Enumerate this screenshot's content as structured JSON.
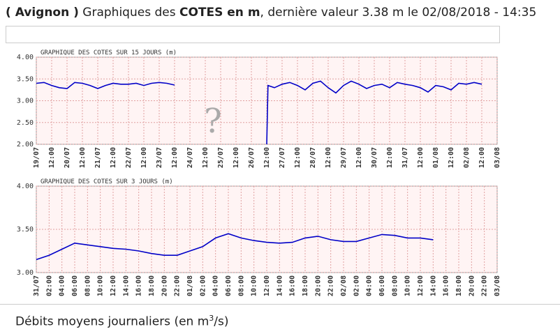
{
  "header": {
    "location": "( Avignon )",
    "text1": "Graphiques des",
    "measure": "COTES en m",
    "text2": ", dernière valeur 3.38 m le 02/08/2018 - 14:35"
  },
  "footer": {
    "text": "Débits moyens journaliers (en m",
    "sup": "3",
    "end": "/s)"
  },
  "chart_data": [
    {
      "type": "line",
      "title": "GRAPHIQUE DES COTES SUR 15 JOURS (m)",
      "annotation": "?",
      "grid": true,
      "xlim": [
        0,
        360
      ],
      "xticks": [
        {
          "value": 0,
          "label": "19/07"
        },
        {
          "value": 12,
          "label": "12:00"
        },
        {
          "value": 24,
          "label": "20/07"
        },
        {
          "value": 36,
          "label": "12:00"
        },
        {
          "value": 48,
          "label": "21/07"
        },
        {
          "value": 60,
          "label": "12:00"
        },
        {
          "value": 72,
          "label": "22/07"
        },
        {
          "value": 84,
          "label": "12:00"
        },
        {
          "value": 96,
          "label": "23/07"
        },
        {
          "value": 108,
          "label": "12:00"
        },
        {
          "value": 120,
          "label": "24/07"
        },
        {
          "value": 132,
          "label": "12:00"
        },
        {
          "value": 144,
          "label": "25/07"
        },
        {
          "value": 156,
          "label": "12:00"
        },
        {
          "value": 168,
          "label": "26/07"
        },
        {
          "value": 180,
          "label": "12:00"
        },
        {
          "value": 192,
          "label": "27/07"
        },
        {
          "value": 204,
          "label": "12:00"
        },
        {
          "value": 216,
          "label": "28/07"
        },
        {
          "value": 228,
          "label": "12:00"
        },
        {
          "value": 240,
          "label": "29/07"
        },
        {
          "value": 252,
          "label": "12:00"
        },
        {
          "value": 264,
          "label": "30/07"
        },
        {
          "value": 276,
          "label": "12:00"
        },
        {
          "value": 288,
          "label": "31/07"
        },
        {
          "value": 300,
          "label": "12:00"
        },
        {
          "value": 312,
          "label": "01/08"
        },
        {
          "value": 324,
          "label": "12:00"
        },
        {
          "value": 336,
          "label": "02/08"
        },
        {
          "value": 348,
          "label": "12:00"
        },
        {
          "value": 360,
          "label": "03/08"
        }
      ],
      "ylim": [
        2,
        4
      ],
      "yticks": [
        {
          "value": 2,
          "label": "2.00"
        },
        {
          "value": 2.5,
          "label": "2.50"
        },
        {
          "value": 3,
          "label": "3.00"
        },
        {
          "value": 3.5,
          "label": "3.50"
        },
        {
          "value": 4,
          "label": "4.00"
        }
      ],
      "series": [
        {
          "color": "#0000c8",
          "x": [
            0,
            6,
            12,
            18,
            24,
            30,
            36,
            42,
            48,
            54,
            60,
            66,
            72,
            78,
            84,
            90,
            96,
            102,
            108,
            144,
            180,
            181,
            186,
            192,
            198,
            204,
            210,
            216,
            222,
            228,
            234,
            240,
            246,
            252,
            258,
            264,
            270,
            276,
            282,
            288,
            294,
            300,
            306,
            312,
            318,
            324,
            330,
            336,
            342,
            348
          ],
          "values": [
            3.4,
            3.42,
            3.35,
            3.3,
            3.28,
            3.42,
            3.4,
            3.35,
            3.28,
            3.35,
            3.4,
            3.38,
            3.38,
            3.4,
            3.35,
            3.4,
            3.42,
            3.4,
            3.36,
            null,
            2.0,
            3.35,
            3.3,
            3.38,
            3.42,
            3.35,
            3.25,
            3.4,
            3.45,
            3.3,
            3.18,
            3.35,
            3.45,
            3.38,
            3.28,
            3.35,
            3.38,
            3.3,
            3.42,
            3.38,
            3.35,
            3.3,
            3.2,
            3.35,
            3.32,
            3.25,
            3.4,
            3.38,
            3.42,
            3.38
          ]
        }
      ]
    },
    {
      "type": "line",
      "title": "GRAPHIQUE DES COTES SUR 3 JOURS (m)",
      "grid": true,
      "xlim": [
        0,
        72
      ],
      "xticks": [
        {
          "value": 0,
          "label": "31/07"
        },
        {
          "value": 2,
          "label": "02:00"
        },
        {
          "value": 4,
          "label": "04:00"
        },
        {
          "value": 6,
          "label": "06:00"
        },
        {
          "value": 8,
          "label": "08:00"
        },
        {
          "value": 10,
          "label": "10:00"
        },
        {
          "value": 12,
          "label": "12:00"
        },
        {
          "value": 14,
          "label": "14:00"
        },
        {
          "value": 16,
          "label": "16:00"
        },
        {
          "value": 18,
          "label": "18:00"
        },
        {
          "value": 20,
          "label": "20:00"
        },
        {
          "value": 22,
          "label": "22:00"
        },
        {
          "value": 24,
          "label": "01/08"
        },
        {
          "value": 26,
          "label": "02:00"
        },
        {
          "value": 28,
          "label": "04:00"
        },
        {
          "value": 30,
          "label": "06:00"
        },
        {
          "value": 32,
          "label": "08:00"
        },
        {
          "value": 34,
          "label": "10:00"
        },
        {
          "value": 36,
          "label": "12:00"
        },
        {
          "value": 38,
          "label": "14:00"
        },
        {
          "value": 40,
          "label": "16:00"
        },
        {
          "value": 42,
          "label": "18:00"
        },
        {
          "value": 44,
          "label": "20:00"
        },
        {
          "value": 46,
          "label": "22:00"
        },
        {
          "value": 48,
          "label": "02/08"
        },
        {
          "value": 50,
          "label": "02:00"
        },
        {
          "value": 52,
          "label": "04:00"
        },
        {
          "value": 54,
          "label": "06:00"
        },
        {
          "value": 56,
          "label": "08:00"
        },
        {
          "value": 58,
          "label": "10:00"
        },
        {
          "value": 60,
          "label": "12:00"
        },
        {
          "value": 62,
          "label": "14:00"
        },
        {
          "value": 64,
          "label": "16:00"
        },
        {
          "value": 66,
          "label": "18:00"
        },
        {
          "value": 68,
          "label": "20:00"
        },
        {
          "value": 70,
          "label": "22:00"
        },
        {
          "value": 72,
          "label": "03/08"
        }
      ],
      "ylim": [
        3,
        4
      ],
      "yticks": [
        {
          "value": 3,
          "label": "3.00"
        },
        {
          "value": 3.5,
          "label": "3.50"
        },
        {
          "value": 4,
          "label": "4.00"
        }
      ],
      "series": [
        {
          "color": "#0000c8",
          "x": [
            0,
            2,
            4,
            6,
            8,
            10,
            12,
            14,
            16,
            18,
            20,
            22,
            24,
            26,
            28,
            30,
            32,
            34,
            36,
            38,
            40,
            42,
            44,
            46,
            48,
            50,
            52,
            54,
            56,
            58,
            60,
            62
          ],
          "values": [
            3.15,
            3.2,
            3.27,
            3.34,
            3.32,
            3.3,
            3.28,
            3.27,
            3.25,
            3.22,
            3.2,
            3.2,
            3.25,
            3.3,
            3.4,
            3.45,
            3.4,
            3.37,
            3.35,
            3.34,
            3.35,
            3.4,
            3.42,
            3.38,
            3.36,
            3.36,
            3.4,
            3.44,
            3.43,
            3.4,
            3.4,
            3.38
          ]
        }
      ]
    }
  ]
}
